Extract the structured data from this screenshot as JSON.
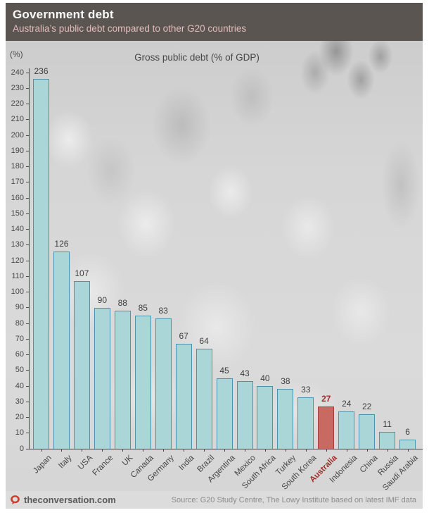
{
  "header": {
    "title": "Government debt",
    "subtitle": "Australia’s public debt compared to other G20 countries"
  },
  "chart_data": {
    "type": "bar",
    "title": "Gross public debt (% of GDP)",
    "unit_label": "(%)",
    "categories": [
      "Japan",
      "Italy",
      "USA",
      "France",
      "UK",
      "Canada",
      "Germany",
      "India",
      "Brazil",
      "Argentina",
      "Mexico",
      "South Africa",
      "Turkey",
      "South Korea",
      "Australia",
      "Indonesia",
      "China",
      "Russia",
      "Saudi Arabia"
    ],
    "values": [
      236,
      126,
      107,
      90,
      88,
      85,
      83,
      67,
      64,
      45,
      43,
      40,
      38,
      33,
      27,
      24,
      22,
      11,
      6
    ],
    "highlight_index": 14,
    "highlight_category": "Australia",
    "ylim": [
      0,
      240
    ],
    "ytick_step": 10,
    "grid": false,
    "legend": "none",
    "colors": {
      "bar_fill": "#aad6d8",
      "bar_border": "#4a93ad",
      "highlight_fill": "#c96a62",
      "highlight_border": "#a93c38",
      "highlight_label": "#9e2f2b",
      "value_label": "#3f3f3f"
    }
  },
  "footer": {
    "brand": "theconversation.com",
    "source": "Source: G20 Study Centre, The Lowy Institute based on latest IMF data",
    "logo_color": "#cf3c30"
  }
}
